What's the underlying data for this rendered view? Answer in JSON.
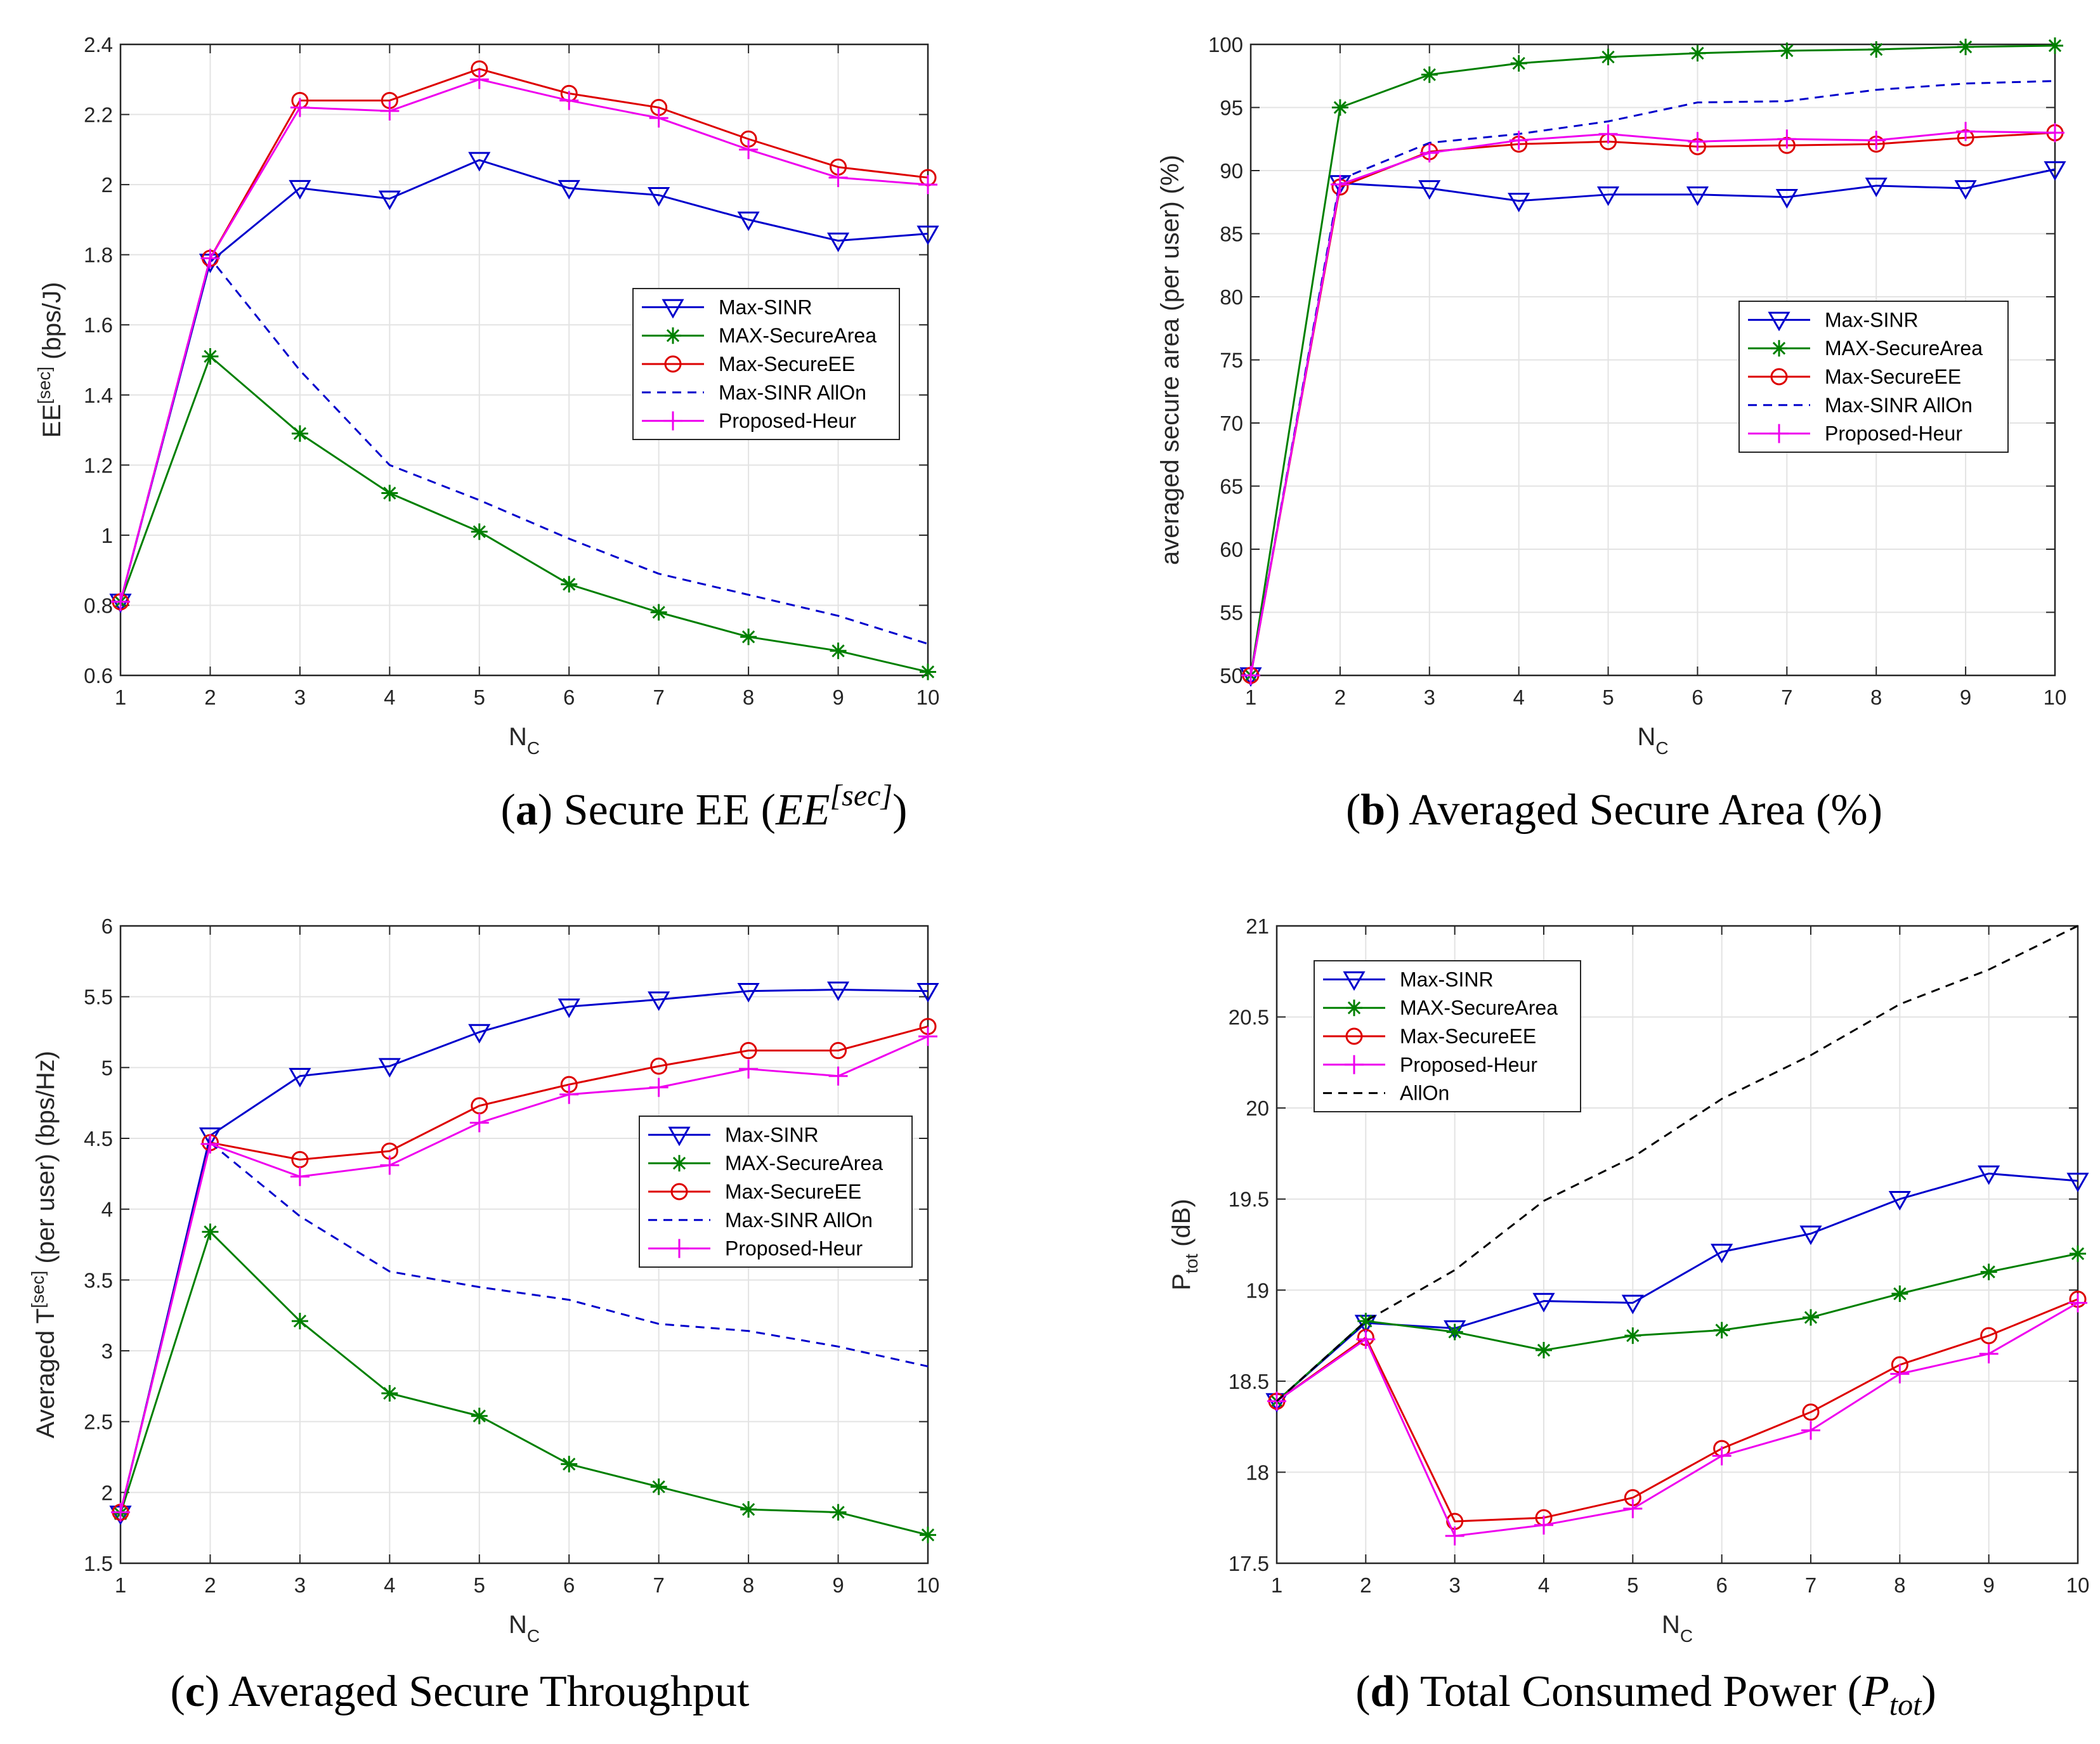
{
  "colors": {
    "Max-SINR": "#0000cc",
    "MAX-SecureArea": "#008000",
    "Max-SecureEE": "#dd0000",
    "Max-SINR AllOn": "#0000cc",
    "Proposed-Heur": "#ee00ee",
    "AllOn": "#000000"
  },
  "chart_data": [
    {
      "id": "a",
      "type": "line",
      "caption": {
        "letter": "a",
        "text": "Secure EE",
        "math": "EE",
        "sup": "[sec]"
      },
      "xlabel": "N",
      "xlabel_sub": "C",
      "ylabel": "EE",
      "ylabel_sup": "[sec]",
      "ylabel_rest": " (bps/J)",
      "xlim": [
        1,
        10
      ],
      "ylim": [
        0.6,
        2.4
      ],
      "xticks": [
        "1",
        "2",
        "3",
        "4",
        "5",
        "6",
        "7",
        "8",
        "9",
        "10"
      ],
      "yticks": [
        "0.6",
        "0.8",
        "1",
        "1.2",
        "1.4",
        "1.6",
        "1.8",
        "2",
        "2.2",
        "2.4"
      ],
      "legend_position": "right",
      "x": [
        1,
        2,
        3,
        4,
        5,
        6,
        7,
        8,
        9,
        10
      ],
      "series": [
        {
          "name": "Max-SINR",
          "marker": "triangle-down",
          "style": "solid",
          "values": [
            0.81,
            1.78,
            1.99,
            1.96,
            2.07,
            1.99,
            1.97,
            1.9,
            1.84,
            1.86
          ]
        },
        {
          "name": "MAX-SecureArea",
          "marker": "asterisk",
          "style": "solid",
          "values": [
            0.81,
            1.51,
            1.29,
            1.12,
            1.01,
            0.86,
            0.78,
            0.71,
            0.67,
            0.61
          ]
        },
        {
          "name": "Max-SecureEE",
          "marker": "circle",
          "style": "solid",
          "values": [
            0.81,
            1.79,
            2.24,
            2.24,
            2.33,
            2.26,
            2.22,
            2.13,
            2.05,
            2.02
          ]
        },
        {
          "name": "Max-SINR AllOn",
          "marker": "none",
          "style": "dashed",
          "values": [
            0.81,
            1.79,
            1.47,
            1.2,
            1.1,
            0.99,
            0.89,
            0.83,
            0.77,
            0.69
          ]
        },
        {
          "name": "Proposed-Heur",
          "marker": "plus",
          "style": "solid",
          "values": [
            0.81,
            1.79,
            2.22,
            2.21,
            2.3,
            2.24,
            2.19,
            2.1,
            2.02,
            2.0
          ]
        }
      ]
    },
    {
      "id": "b",
      "type": "line",
      "caption": {
        "letter": "b",
        "text": "Averaged Secure Area (%)"
      },
      "xlabel": "N",
      "xlabel_sub": "C",
      "ylabel": "averaged secure area (per user) (%)",
      "xlim": [
        1,
        10
      ],
      "ylim": [
        50,
        100
      ],
      "xticks": [
        "1",
        "2",
        "3",
        "4",
        "5",
        "6",
        "7",
        "8",
        "9",
        "10"
      ],
      "yticks": [
        "50",
        "55",
        "60",
        "65",
        "70",
        "75",
        "80",
        "85",
        "90",
        "95",
        "100"
      ],
      "legend_position": "right",
      "x": [
        1,
        2,
        3,
        4,
        5,
        6,
        7,
        8,
        9,
        10
      ],
      "series": [
        {
          "name": "Max-SINR",
          "marker": "triangle-down",
          "style": "solid",
          "values": [
            50,
            89.0,
            88.6,
            87.6,
            88.1,
            88.1,
            87.9,
            88.8,
            88.6,
            90.1
          ]
        },
        {
          "name": "MAX-SecureArea",
          "marker": "asterisk",
          "style": "solid",
          "values": [
            50,
            95.0,
            97.6,
            98.5,
            99.0,
            99.3,
            99.5,
            99.6,
            99.8,
            99.9
          ]
        },
        {
          "name": "Max-SecureEE",
          "marker": "circle",
          "style": "solid",
          "values": [
            50,
            88.7,
            91.5,
            92.1,
            92.3,
            91.9,
            92.0,
            92.1,
            92.6,
            93.0
          ]
        },
        {
          "name": "Max-SINR AllOn",
          "marker": "none",
          "style": "dashed",
          "values": [
            50,
            89.3,
            92.2,
            92.9,
            93.9,
            95.4,
            95.5,
            96.4,
            96.9,
            97.1
          ]
        },
        {
          "name": "Proposed-Heur",
          "marker": "plus",
          "style": "solid",
          "values": [
            50,
            88.9,
            91.4,
            92.4,
            92.9,
            92.3,
            92.5,
            92.4,
            93.1,
            93.0
          ]
        }
      ]
    },
    {
      "id": "c",
      "type": "line",
      "caption": {
        "letter": "c",
        "text": "Averaged Secure Throughput"
      },
      "xlabel": "N",
      "xlabel_sub": "C",
      "ylabel": "Averaged T",
      "ylabel_sup": "[sec]",
      "ylabel_rest": " (per user) (bps/Hz)",
      "xlim": [
        1,
        10
      ],
      "ylim": [
        1.5,
        6
      ],
      "xticks": [
        "1",
        "2",
        "3",
        "4",
        "5",
        "6",
        "7",
        "8",
        "9",
        "10"
      ],
      "yticks": [
        "1.5",
        "2",
        "2.5",
        "3",
        "3.5",
        "4",
        "4.5",
        "5",
        "5.5",
        "6"
      ],
      "legend_position": "right",
      "x": [
        1,
        2,
        3,
        4,
        5,
        6,
        7,
        8,
        9,
        10
      ],
      "series": [
        {
          "name": "Max-SINR",
          "marker": "triangle-down",
          "style": "solid",
          "values": [
            1.85,
            4.52,
            4.94,
            5.01,
            5.25,
            5.43,
            5.48,
            5.54,
            5.55,
            5.54
          ]
        },
        {
          "name": "MAX-SecureArea",
          "marker": "asterisk",
          "style": "solid",
          "values": [
            1.85,
            3.84,
            3.21,
            2.7,
            2.54,
            2.2,
            2.04,
            1.88,
            1.86,
            1.7
          ]
        },
        {
          "name": "Max-SecureEE",
          "marker": "circle",
          "style": "solid",
          "values": [
            1.86,
            4.47,
            4.35,
            4.41,
            4.73,
            4.88,
            5.01,
            5.12,
            5.12,
            5.29
          ]
        },
        {
          "name": "Max-SINR AllOn",
          "marker": "none",
          "style": "dashed",
          "values": [
            1.86,
            4.47,
            3.95,
            3.56,
            3.45,
            3.36,
            3.19,
            3.14,
            3.03,
            2.89
          ]
        },
        {
          "name": "Proposed-Heur",
          "marker": "plus",
          "style": "solid",
          "values": [
            1.86,
            4.46,
            4.23,
            4.31,
            4.61,
            4.81,
            4.86,
            4.99,
            4.94,
            5.22
          ]
        }
      ]
    },
    {
      "id": "d",
      "type": "line",
      "caption": {
        "letter": "d",
        "text": "Total Consumed Power",
        "math": "P",
        "sub": "tot"
      },
      "xlabel": "N",
      "xlabel_sub": "C",
      "ylabel": "P",
      "ylabel_sub": "tot",
      "ylabel_rest": " (dB)",
      "xlim": [
        1,
        10
      ],
      "ylim": [
        17.5,
        21
      ],
      "xticks": [
        "1",
        "2",
        "3",
        "4",
        "5",
        "6",
        "7",
        "8",
        "9",
        "10"
      ],
      "yticks": [
        "17.5",
        "18",
        "18.5",
        "19",
        "19.5",
        "20",
        "20.5",
        "21"
      ],
      "legend_position": "top-left",
      "x": [
        1,
        2,
        3,
        4,
        5,
        6,
        7,
        8,
        9,
        10
      ],
      "series": [
        {
          "name": "Max-SINR",
          "marker": "triangle-down",
          "style": "solid",
          "values": [
            18.39,
            18.82,
            18.79,
            18.94,
            18.93,
            19.21,
            19.31,
            19.5,
            19.64,
            19.6
          ]
        },
        {
          "name": "MAX-SecureArea",
          "marker": "asterisk",
          "style": "solid",
          "values": [
            18.39,
            18.83,
            18.77,
            18.67,
            18.75,
            18.78,
            18.85,
            18.98,
            19.1,
            19.2
          ]
        },
        {
          "name": "Max-SecureEE",
          "marker": "circle",
          "style": "solid",
          "values": [
            18.39,
            18.74,
            17.73,
            17.75,
            17.86,
            18.13,
            18.33,
            18.59,
            18.75,
            18.95
          ]
        },
        {
          "name": "Proposed-Heur",
          "marker": "plus",
          "style": "solid",
          "values": [
            18.39,
            18.73,
            17.65,
            17.71,
            17.8,
            18.09,
            18.23,
            18.54,
            18.65,
            18.93
          ]
        },
        {
          "name": "AllOn",
          "marker": "none",
          "style": "dashed",
          "values": [
            18.39,
            18.83,
            19.11,
            19.49,
            19.73,
            20.05,
            20.29,
            20.57,
            20.76,
            21.0
          ]
        }
      ]
    }
  ]
}
